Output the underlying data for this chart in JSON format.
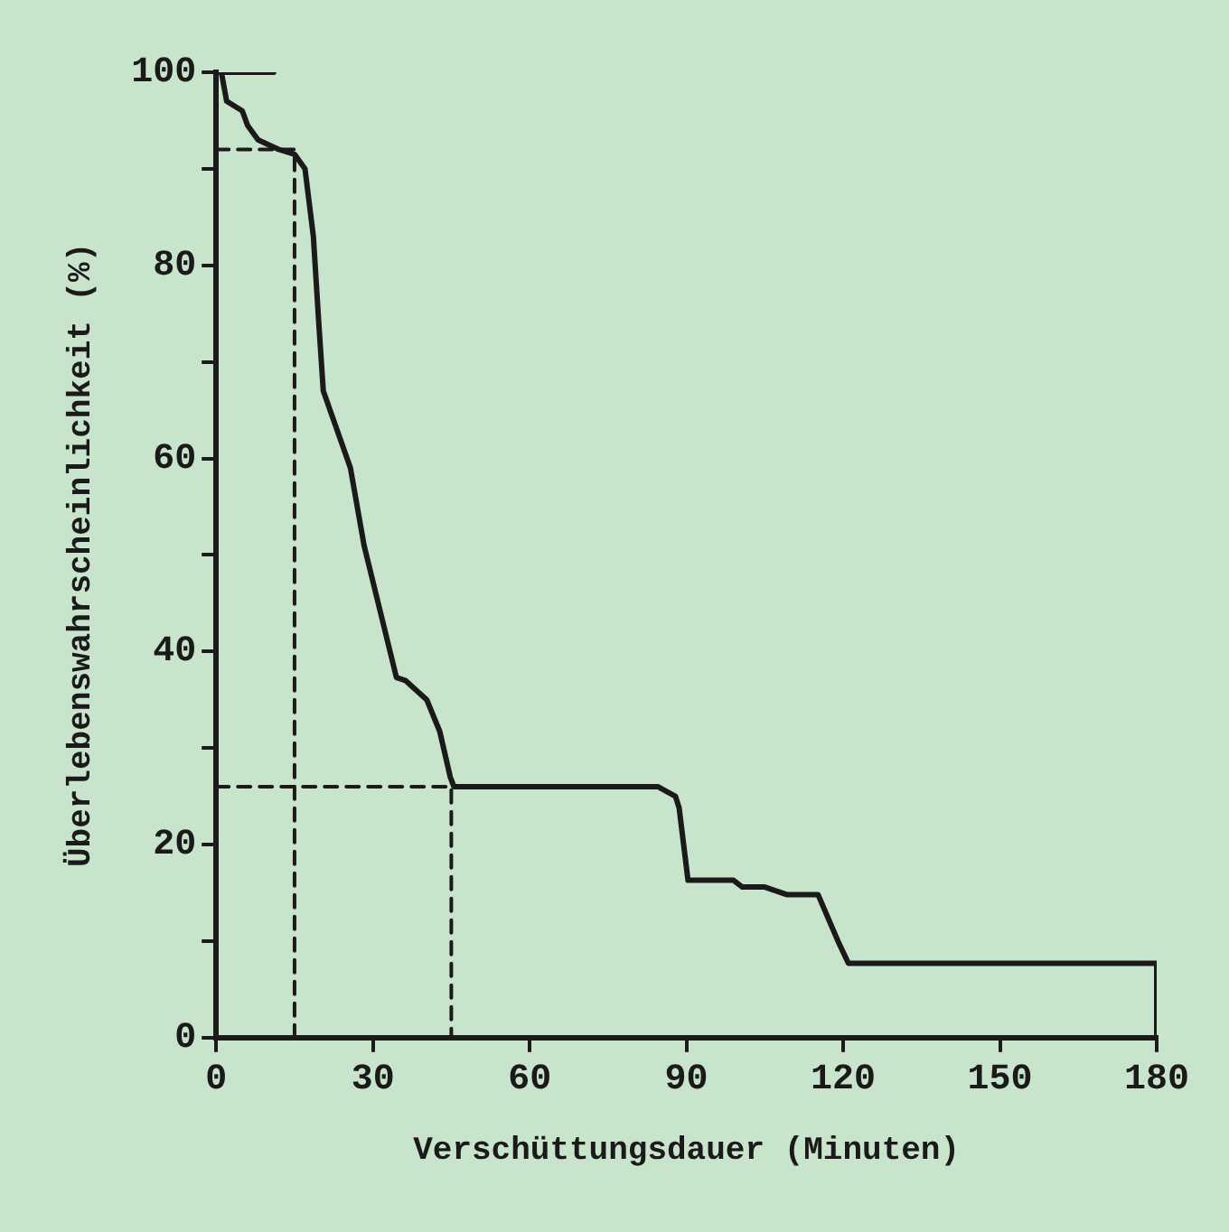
{
  "chart_data": {
    "type": "line",
    "xlabel": "Verschüttungsdauer (Minuten)",
    "ylabel": "Überlebenswahrscheinlichkeit (%)",
    "xlim": [
      0,
      180
    ],
    "xticks": [
      0,
      30,
      60,
      90,
      120,
      150,
      180
    ],
    "ylim": [
      0,
      100
    ],
    "yticks": [
      0,
      {
        "value": 10,
        "label": null
      },
      20,
      {
        "value": 30,
        "label": null
      },
      40,
      {
        "value": 50,
        "label": null
      },
      60,
      {
        "value": 70,
        "label": null
      },
      80,
      {
        "value": 90,
        "label": null
      },
      100
    ],
    "grid": false,
    "legend": false,
    "marker": "none",
    "series": [
      {
        "color": "#1a1a1a",
        "line_style": "solid",
        "x": [
          0,
          1,
          2,
          5,
          6,
          8,
          10,
          12,
          15,
          17,
          18.6,
          19.7,
          20.5,
          25.7,
          28.3,
          34.5,
          36.2,
          40.3,
          42.8,
          44.8,
          45.5,
          84.5,
          87.9,
          88.6,
          90.3,
          99,
          100.7,
          105,
          109.3,
          115.2,
          119,
          121,
          180,
          180
        ],
        "values": [
          100,
          100,
          97,
          96,
          94.5,
          93,
          92.5,
          92,
          91.5,
          90,
          83,
          73.5,
          67,
          59,
          51,
          37.3,
          37,
          35,
          31.7,
          27,
          26,
          26,
          25,
          23.8,
          16.3,
          16.3,
          15.6,
          15.6,
          14.8,
          14.8,
          10,
          7.7,
          7.7,
          0
        ]
      },
      {
        "color": "#1a1a1a",
        "line_style": "solid",
        "x": [
          0,
          11
        ],
        "values": [
          100,
          100
        ]
      },
      {
        "color": "#1a1a1a",
        "line_style": "dashed",
        "x": [
          0,
          15,
          15
        ],
        "values": [
          92,
          92,
          0
        ]
      },
      {
        "color": "#1a1a1a",
        "line_style": "dashed",
        "x": [
          0,
          45,
          45
        ],
        "values": [
          26,
          26,
          0
        ]
      }
    ]
  }
}
